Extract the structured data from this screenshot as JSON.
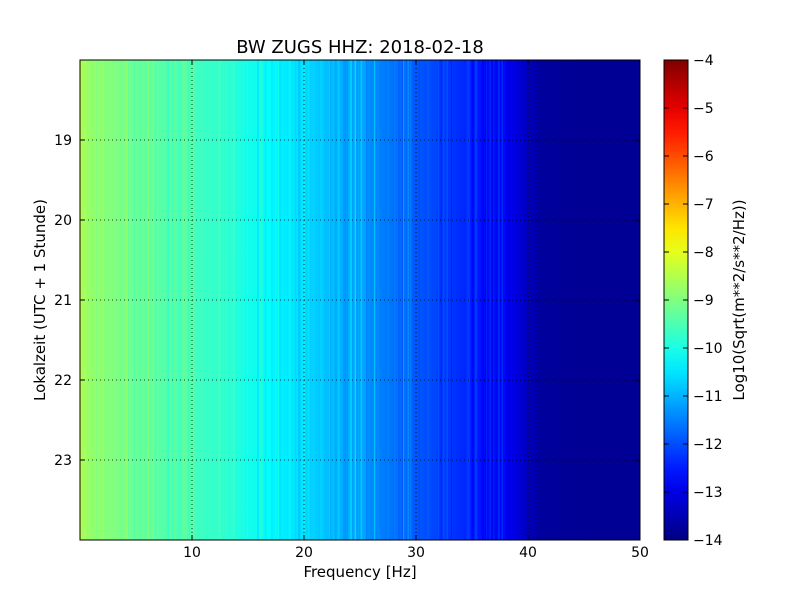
{
  "chart_data": {
    "type": "heatmap",
    "title": "BW ZUGS HHZ: 2018-02-18",
    "xlabel": "Frequency [Hz]",
    "ylabel": "Lokalzeit (UTC + 1 Stunde)",
    "colorbar_label": "Log10(Sqrt(m**2/s**2/Hz))",
    "colormap": "jet",
    "xlim": [
      0,
      50
    ],
    "ylim": [
      24,
      18
    ],
    "x_ticks": [
      10,
      20,
      30,
      40,
      50
    ],
    "y_ticks": [
      19,
      20,
      21,
      22,
      23
    ],
    "grid": true,
    "colorbar_range": [
      -14,
      -4
    ],
    "colorbar_ticks": [
      -4,
      -5,
      -6,
      -7,
      -8,
      -9,
      -10,
      -11,
      -12,
      -13,
      -14
    ],
    "frequency_profile": {
      "frequency_hz": [
        0,
        1,
        3,
        6,
        10,
        13,
        17,
        20,
        23,
        26,
        30,
        33,
        36,
        38,
        39.5,
        41,
        45,
        50
      ],
      "log10_psd": [
        -8.6,
        -8.8,
        -9.0,
        -9.3,
        -9.6,
        -9.8,
        -10.3,
        -10.6,
        -11.0,
        -11.4,
        -11.9,
        -12.2,
        -12.6,
        -12.9,
        -13.2,
        -13.7,
        -13.8,
        -13.8
      ]
    }
  }
}
